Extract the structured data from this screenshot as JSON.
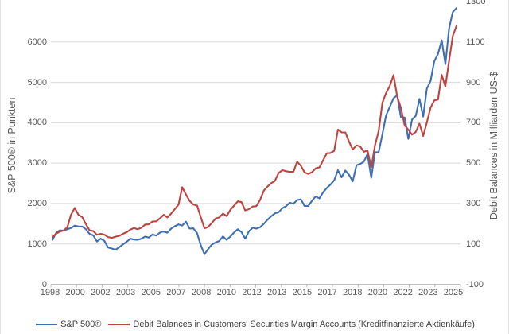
{
  "chart": {
    "left_axis": {
      "title": "S&P 500® in Punkten",
      "min": 0,
      "max": 7000,
      "tick_step": 1000,
      "ticks": [
        0,
        1000,
        2000,
        3000,
        4000,
        5000,
        6000
      ]
    },
    "right_axis": {
      "title": "Debit Balances in Milliarden US-$",
      "min": -100,
      "max": 1300,
      "tick_step": 200,
      "ticks": [
        -100,
        100,
        300,
        500,
        700,
        900,
        1100,
        1300
      ]
    },
    "x_axis": {
      "labels": [
        "1998",
        "2000",
        "2002",
        "2003",
        "2005",
        "2007",
        "2008",
        "2010",
        "2012",
        "2013",
        "2015",
        "2017",
        "2018",
        "2020",
        "2022",
        "2023",
        "2025"
      ]
    },
    "legend": [
      {
        "label": "S&P 500®",
        "color": "#4070B4"
      },
      {
        "label": "Debit Balances in Customers' Securities Margin Accounts (Kreditfinanzierte Aktienkäufe)",
        "color": "#BE4440"
      }
    ],
    "colors": {
      "gridline": "#d9d9d9",
      "axis_line": "#bfbfbf",
      "text": "#595959"
    }
  },
  "chart_data": {
    "type": "line",
    "x_start": "1998-10",
    "x_interval_months": 3,
    "x_end": "2025-11",
    "grid": "horizontal",
    "legend_position": "bottom",
    "series": [
      {
        "name": "S&P 500®",
        "axis": "left",
        "color": "#4070B4",
        "values": [
          1098,
          1279,
          1335,
          1329,
          1363,
          1394,
          1452,
          1431,
          1429,
          1366,
          1249,
          1211,
          1060,
          1130,
          1077,
          912,
          886,
          856,
          917,
          990,
          1051,
          1131,
          1107,
          1102,
          1130,
          1181,
          1157,
          1234,
          1207,
          1280,
          1311,
          1277,
          1378,
          1438,
          1482,
          1455,
          1549,
          1379,
          1386,
          1267,
          969,
          745,
          873,
          987,
          1036,
          1074,
          1187,
          1101,
          1183,
          1286,
          1364,
          1292,
          1131,
          1312,
          1398,
          1379,
          1412,
          1498,
          1598,
          1686,
          1757,
          1783,
          1884,
          1931,
          2018,
          1995,
          2086,
          2104,
          1940,
          1940,
          2065,
          2174,
          2126,
          2279,
          2384,
          2470,
          2575,
          2824,
          2648,
          2816,
          2712,
          2550,
          2946,
          2980,
          3038,
          3226,
          2640,
          3271,
          3270,
          3714,
          4181,
          4395,
          4605,
          4680,
          4132,
          4130,
          3600,
          4077,
          4169,
          4589,
          4150,
          4846,
          5036,
          5522,
          5705,
          6041,
          5450,
          6339,
          6740,
          6840
        ]
      },
      {
        "name": "Debit Balances in Customers' Securities Margin Accounts (Kreditfinanzierte Aktienkäufe)",
        "axis": "right",
        "color": "#BE4440",
        "values": [
          134,
          151,
          161,
          167,
          182,
          244,
          278,
          244,
          233,
          199,
          167,
          164,
          145,
          150,
          146,
          134,
          130,
          136,
          140,
          150,
          158,
          171,
          179,
          173,
          180,
          196,
          197,
          211,
          212,
          227,
          244,
          231,
          250,
          272,
          295,
          381,
          345,
          313,
          295,
          290,
          233,
          177,
          184,
          204,
          226,
          231,
          250,
          238,
          269,
          290,
          311,
          307,
          266,
          272,
          285,
          287,
          318,
          364,
          384,
          401,
          412,
          451,
          465,
          460,
          457,
          457,
          507,
          487,
          454,
          447,
          455,
          474,
          479,
          513,
          549,
          550,
          561,
          666,
          652,
          652,
          607,
          568,
          588,
          583,
          556,
          562,
          480,
          588,
          659,
          799,
          847,
          882,
          936,
          830,
          773,
          687,
          665,
          641,
          654,
          695,
          635,
          701,
          775,
          810,
          815,
          937,
          880,
          1008,
          1130,
          1180
        ]
      }
    ]
  }
}
